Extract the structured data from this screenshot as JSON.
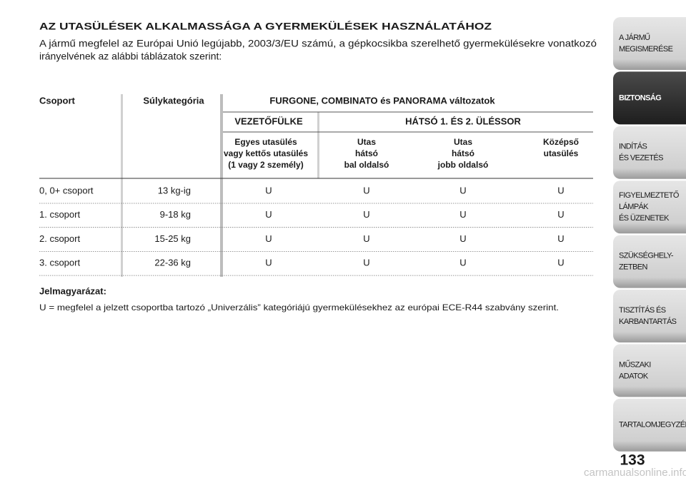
{
  "header": {
    "title": "AZ UTASÜLÉSEK ALKALMASSÁGA A GYERMEKÜLÉSEK HASZNÁLATÁHOZ",
    "intro": [
      "A jármű megfelel az Európai Unió legújabb, 2003/3/EU számú, a gépkocsikba szerelhető gyermekülésekre vonatkozó",
      "irányelvének az alábbi táblázatok szerint:"
    ]
  },
  "table": {
    "col_group": "Csoport",
    "col_weight": "Súlykategória",
    "variant_title": "FURGONE, COMBINATO és PANORAMA változatok",
    "sections": [
      "VEZETŐFÜLKE",
      "HÁTSÓ 1. ÉS 2. ÜLÉSSOR"
    ],
    "seat_headers": [
      [
        "Egyes utasülés",
        "vagy kettős utasülés",
        "(1 vagy 2 személy)"
      ],
      [
        "Utas",
        "hátsó",
        "bal oldalsó"
      ],
      [
        "Utas",
        "hátsó",
        "jobb oldalsó"
      ],
      [
        "Középső",
        "utasülés"
      ]
    ],
    "rows": [
      [
        "0, 0+ csoport",
        "13 kg-ig",
        "U",
        "U",
        "U",
        "U"
      ],
      [
        "1. csoport",
        "9-18 kg",
        "U",
        "U",
        "U",
        "U"
      ],
      [
        "2. csoport",
        "15-25 kg",
        "U",
        "U",
        "U",
        "U"
      ],
      [
        "3. csoport",
        "22-36 kg",
        "U",
        "U",
        "U",
        "U"
      ]
    ]
  },
  "legend": {
    "title": "Jelmagyarázat:",
    "text": "U = megfelel a jelzett csoportba tartozó „Univerzális” kategóriájú gyermekülésekhez az európai ECE-R44 szabvány szerint."
  },
  "sidebar": {
    "tabs": [
      {
        "lines": [
          "A JÁRMŰ",
          "MEGISMERÉSE"
        ]
      },
      {
        "lines": [
          "BIZTONSÁG"
        ],
        "active": true
      },
      {
        "lines": [
          "INDÍTÁS",
          "ÉS VEZETÉS"
        ]
      },
      {
        "lines": [
          "FIGYELMEZTETŐ",
          "LÁMPÁK",
          "ÉS ÜZENETEK"
        ]
      },
      {
        "lines": [
          "SZÜKSÉGHELY-",
          "ZETBEN"
        ]
      },
      {
        "lines": [
          "TISZTÍTÁS ÉS",
          "KARBANTARTÁS"
        ]
      },
      {
        "lines": [
          "MŰSZAKI",
          "ADATOK"
        ]
      },
      {
        "lines": [
          "TARTALOMJEGYZÉK"
        ]
      }
    ]
  },
  "page_number": "133",
  "watermark": "carmanualsonline.info"
}
